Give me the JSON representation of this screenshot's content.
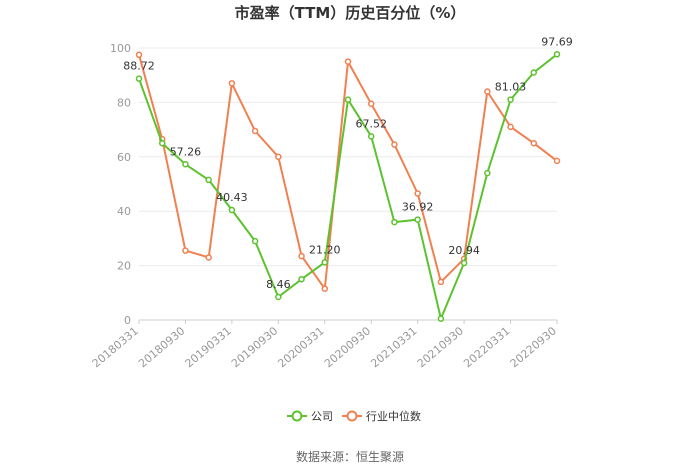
{
  "chart_data": {
    "type": "line",
    "title": "市盈率（TTM）历史百分位（%）",
    "source": "数据来源：恒生聚源",
    "ylim": [
      0,
      100
    ],
    "yticks": [
      0,
      20,
      40,
      60,
      80,
      100
    ],
    "grid": true,
    "legend_position": "bottom",
    "x": [
      "20180331",
      "20180630",
      "20180930",
      "20181231",
      "20190331",
      "20190630",
      "20190930",
      "20191231",
      "20200331",
      "20200630",
      "20200930",
      "20201231",
      "20210331",
      "20210630",
      "20210930",
      "20211231",
      "20220331",
      "20220630",
      "20220930"
    ],
    "xtick_labels": [
      "20180331",
      "20180930",
      "20190331",
      "20190930",
      "20200331",
      "20200930",
      "20210331",
      "20210930",
      "20220331",
      "20220930"
    ],
    "series": [
      {
        "name": "公司",
        "color": "#5cc22e",
        "values": [
          88.72,
          65,
          57.26,
          51.5,
          40.43,
          29,
          8.46,
          15,
          21.2,
          81,
          67.52,
          36,
          36.92,
          0.5,
          20.94,
          54,
          81.03,
          91,
          97.69
        ],
        "labels": {
          "0": "88.72",
          "2": "57.26",
          "4": "40.43",
          "6": "8.46",
          "8": "21.20",
          "10": "67.52",
          "12": "36.92",
          "14": "20.94",
          "16": "81.03",
          "18": "97.69"
        }
      },
      {
        "name": "行业中位数",
        "color": "#f08050",
        "values": [
          97.5,
          66.5,
          25.5,
          23,
          87,
          69.5,
          60,
          23.5,
          11.5,
          95,
          79.5,
          64.5,
          46.5,
          14,
          22.5,
          84,
          71,
          65,
          58.5
        ]
      }
    ]
  }
}
